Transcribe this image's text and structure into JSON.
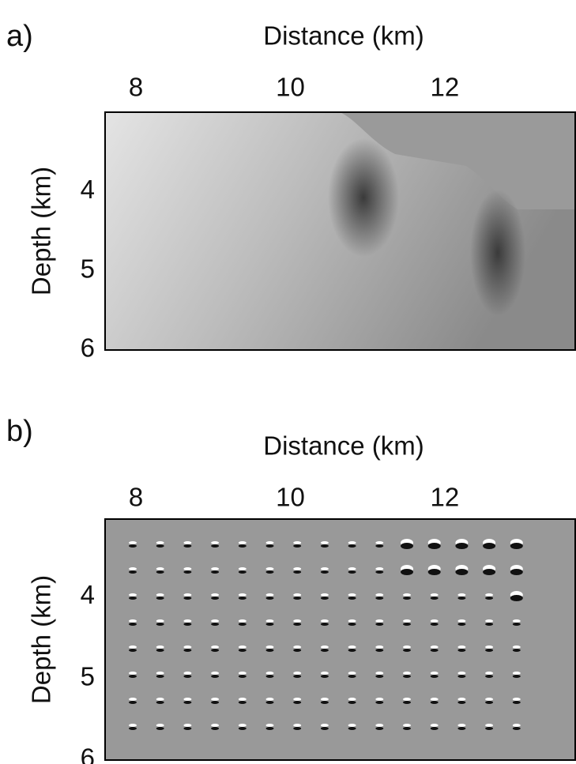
{
  "chart_data": [
    {
      "type": "image",
      "panel_label": "a)",
      "x_label": "Distance (km)",
      "y_label": "Depth (km)",
      "xlim": [
        7.6,
        13.7
      ],
      "xticks": [
        8,
        10,
        12
      ],
      "ylim": [
        3,
        6
      ],
      "yticks": [
        4,
        5,
        6
      ],
      "y_inverted": true,
      "style": "velocity"
    },
    {
      "type": "image",
      "panel_label": "b)",
      "x_label": "Distance (km)",
      "y_label": "Depth (km)",
      "xlim": [
        7.6,
        13.7
      ],
      "xticks": [
        8,
        10,
        12
      ],
      "ylim": [
        3.05,
        6
      ],
      "yticks": [
        4,
        5,
        6
      ],
      "y_inverted": true,
      "style": "psf"
    }
  ]
}
